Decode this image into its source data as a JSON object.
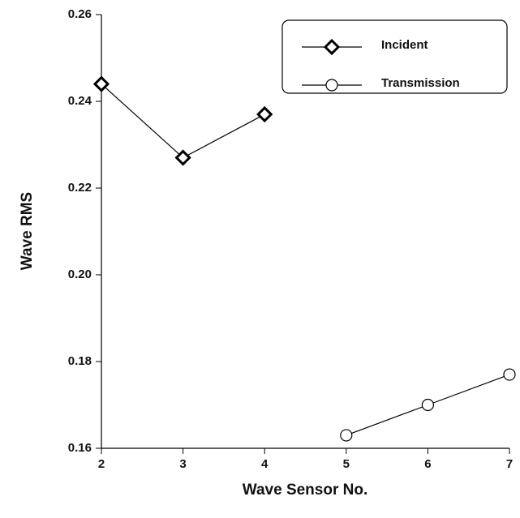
{
  "chart_data": {
    "type": "line",
    "xlabel": "Wave Sensor No.",
    "ylabel": "Wave RMS",
    "xlim": [
      2,
      7
    ],
    "xticks": [
      2,
      3,
      4,
      5,
      6,
      7
    ],
    "ylim": [
      0.16,
      0.26
    ],
    "yticks": [
      0.16,
      0.18,
      {
        "value": 0.2,
        "label": "0.20"
      },
      0.22,
      0.24,
      0.26
    ],
    "legend": "upper right",
    "series": [
      {
        "name": "Incident",
        "color": "#000000",
        "marker": "diamond",
        "x": [
          2,
          3,
          4
        ],
        "values": [
          0.244,
          0.227,
          0.237
        ]
      },
      {
        "name": "Transmission",
        "color": "#000000",
        "marker": "circle",
        "x": [
          5,
          6,
          7
        ],
        "values": [
          0.163,
          0.17,
          0.177
        ]
      }
    ]
  }
}
